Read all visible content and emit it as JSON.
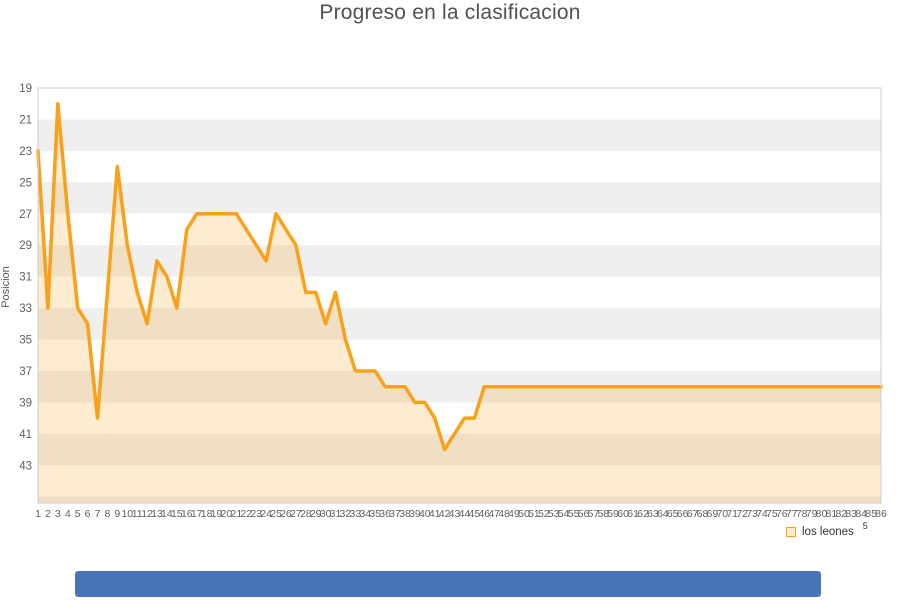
{
  "header": {
    "title": "Progreso en la clasificacion"
  },
  "chart_data": {
    "type": "area",
    "title": "Progreso en la clasificacion",
    "xlabel": "",
    "ylabel": "Posicion",
    "series_name": "los leones",
    "y_axis_inverted": true,
    "ylim": [
      19,
      45.4
    ],
    "y_ticks": [
      19,
      21,
      23,
      25,
      27,
      29,
      31,
      33,
      35,
      37,
      39,
      41,
      43
    ],
    "grid": "alternating horizontal bands",
    "legend_position": "bottom-right",
    "x": [
      1,
      2,
      3,
      4,
      5,
      6,
      7,
      8,
      9,
      10,
      11,
      12,
      13,
      14,
      15,
      16,
      17,
      18,
      19,
      20,
      21,
      22,
      23,
      24,
      25,
      26,
      27,
      28,
      29,
      30,
      31,
      32,
      33,
      34,
      35,
      36,
      37,
      38,
      39,
      40,
      41,
      42,
      43,
      44,
      45,
      46,
      47,
      48,
      49,
      50,
      51,
      52,
      53,
      54,
      55,
      56,
      57,
      58,
      59,
      60,
      61,
      62,
      63,
      64,
      65,
      66,
      67,
      68,
      69,
      70,
      71,
      72,
      73,
      74,
      75,
      76,
      77,
      78,
      79,
      80,
      81,
      82,
      83,
      84,
      85,
      86
    ],
    "values": [
      23,
      33,
      20,
      27,
      33,
      34,
      40,
      32,
      24,
      29,
      32,
      34,
      30,
      31,
      33,
      28,
      27,
      27,
      27,
      27,
      27,
      28,
      29,
      30,
      27,
      28,
      29,
      32,
      32,
      34,
      32,
      35,
      37,
      37,
      37,
      38,
      38,
      38,
      39,
      39,
      40,
      42,
      41,
      40,
      40,
      38,
      38,
      38,
      38,
      38,
      38,
      38,
      38,
      38,
      38,
      38,
      38,
      38,
      38,
      38,
      38,
      38,
      38,
      38,
      38,
      38,
      38,
      38,
      38,
      38,
      38,
      38,
      38,
      38,
      38,
      38,
      38,
      38,
      38,
      38,
      38,
      38,
      38,
      38,
      38,
      38
    ]
  },
  "legend": {
    "label": "los leones",
    "superscript": "5"
  },
  "colors": {
    "line": "#f9a11b",
    "area_fill": "rgba(249,161,27,0.2)",
    "band_gray": "#efefef",
    "band_white": "#ffffff",
    "plot_border": "#cccccc",
    "axis_text": "#606060",
    "title_text": "#515151",
    "scrollbar_blue": "#4874b8"
  }
}
